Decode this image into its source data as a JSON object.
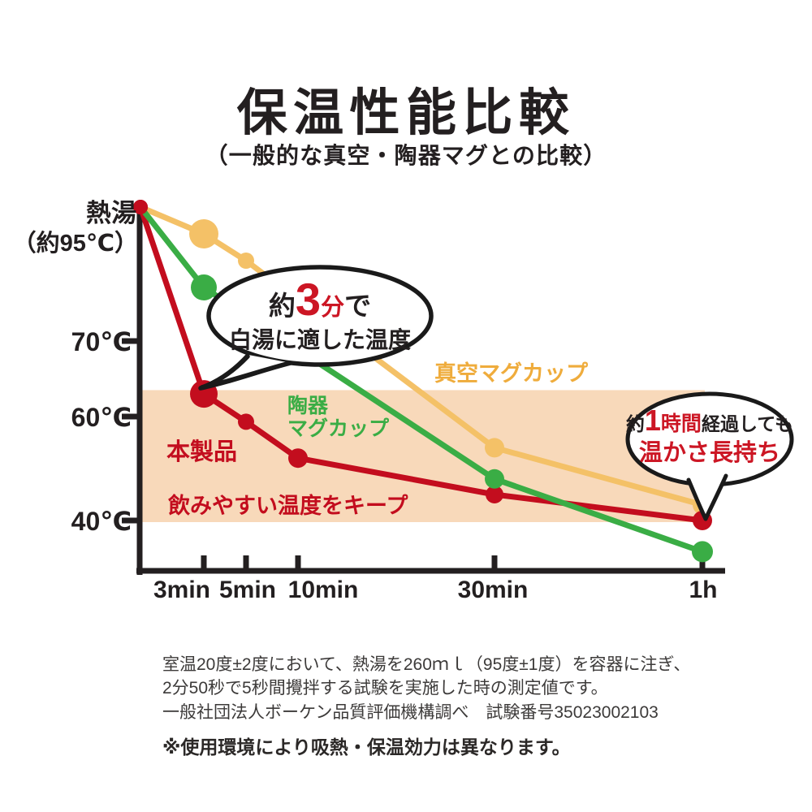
{
  "title": "保温性能比較",
  "subtitle": "（一般的な真空・陶器マグとの比較）",
  "colors": {
    "product_red": "#c30d1e",
    "accent_red": "#cc1624",
    "vacuum_orange": "#f4c167",
    "vacuum_orange_text": "#efac3c",
    "ceramic_green": "#3aad45",
    "band_peach": "#f8d9ba",
    "axis_black": "#231f20"
  },
  "chart_data": {
    "type": "line",
    "title": "保温性能比較",
    "subtitle": "（一般的な真空・陶器マグとの比較）",
    "x_unit": "minutes",
    "x_ticks": [
      "3min",
      "5min",
      "10min",
      "30min",
      "1h"
    ],
    "x_tick_times": [
      3,
      5,
      10,
      30,
      60
    ],
    "y_axis_top_label_line1": "熱湯",
    "y_axis_top_label_line2": "（約95℃）",
    "y_ticks": [
      "70℃",
      "60℃",
      "40℃"
    ],
    "y_tick_values": [
      70,
      60,
      40
    ],
    "start_temp": 95,
    "grid": false,
    "series": [
      {
        "name": "本製品",
        "color": "#c30d1e",
        "points": [
          {
            "t": 0,
            "temp": 95
          },
          {
            "t": 3,
            "temp": 63
          },
          {
            "t": 5,
            "temp": 59
          },
          {
            "t": 10,
            "temp": 52
          },
          {
            "t": 30,
            "temp": 45
          },
          {
            "t": 60,
            "temp": 40
          }
        ]
      },
      {
        "name": "真空マグカップ",
        "color": "#f4c167",
        "points": [
          {
            "t": 0,
            "temp": 95
          },
          {
            "t": 3,
            "temp": 90
          },
          {
            "t": 5,
            "temp": 85
          },
          {
            "t": 30,
            "temp": 54
          },
          {
            "t": 60,
            "temp": 43
          }
        ]
      },
      {
        "name": "陶器マグカップ",
        "display_label": "陶器\nマグカップ",
        "color": "#3aad45",
        "points": [
          {
            "t": 0,
            "temp": 95
          },
          {
            "t": 3,
            "temp": 80
          },
          {
            "t": 30,
            "temp": 48
          },
          {
            "t": 60,
            "temp": 34
          }
        ]
      }
    ],
    "band": {
      "label": "飲みやすい温度をキープ",
      "temp_top": 63.5,
      "temp_bottom": 40,
      "color": "#f8d9ba"
    }
  },
  "bubbles": {
    "b1": {
      "seg1": "約",
      "num": "3",
      "unit": "分",
      "seg2": "で",
      "line2": "白湯に適した温度"
    },
    "b2": {
      "seg1": "約",
      "num": "1",
      "unit": "時間",
      "seg2": "経過しても",
      "line2": "温かさ長持ち"
    }
  },
  "footnotes": [
    "室温20度±2度において、熱湯を260ｍｌ（95度±1度）を容器に注ぎ、",
    "2分50秒で5秒間攪拌する試験を実施した時の測定値です。",
    "一般社団法人ボーケン品質評価機構調べ　試験番号35023002103"
  ],
  "disclaimer": "※使用環境により吸熱・保温効力は異なります。"
}
